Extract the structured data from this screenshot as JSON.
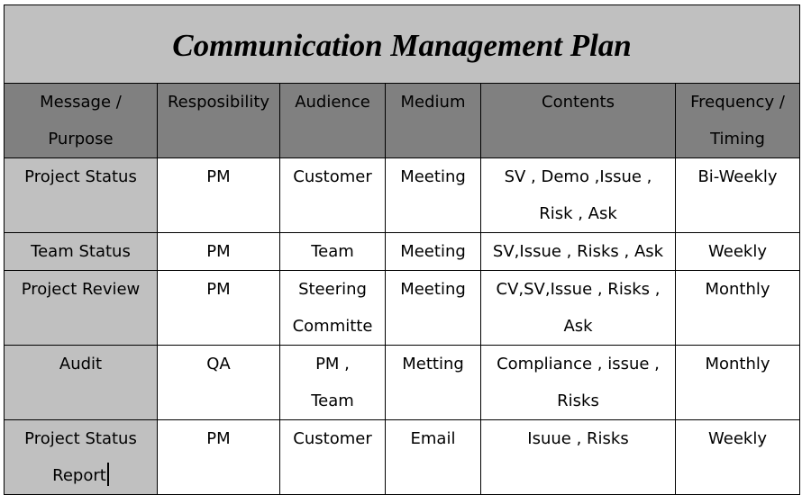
{
  "title": "Communication Management Plan",
  "columns": [
    "Message /\nPurpose",
    "Resposibility",
    "Audience",
    "Medium",
    "Contents",
    "Frequency /\nTiming"
  ],
  "rows": [
    [
      "Project Status",
      "PM",
      "Customer",
      "Meeting",
      "SV , Demo ,Issue ,\nRisk , Ask",
      "Bi-Weekly"
    ],
    [
      "Team Status",
      "PM",
      "Team",
      "Meeting",
      "SV,Issue , Risks , Ask",
      "Weekly"
    ],
    [
      "Project Review",
      "PM",
      "Steering\nCommitte",
      "Meeting",
      "CV,SV,Issue , Risks ,\nAsk",
      "Monthly"
    ],
    [
      "Audit",
      "QA",
      "PM ,\nTeam",
      "Metting",
      "Compliance , issue ,\nRisks",
      "Monthly"
    ],
    [
      "Project Status\nReport",
      "PM",
      "Customer",
      "Email",
      "Isuue , Risks",
      "Weekly"
    ]
  ],
  "colors": {
    "title_bg": "#c0c0c0",
    "header_bg": "#808080",
    "first_col_bg": "#c0c0c0",
    "cell_bg": "#ffffff",
    "border": "#000000"
  }
}
